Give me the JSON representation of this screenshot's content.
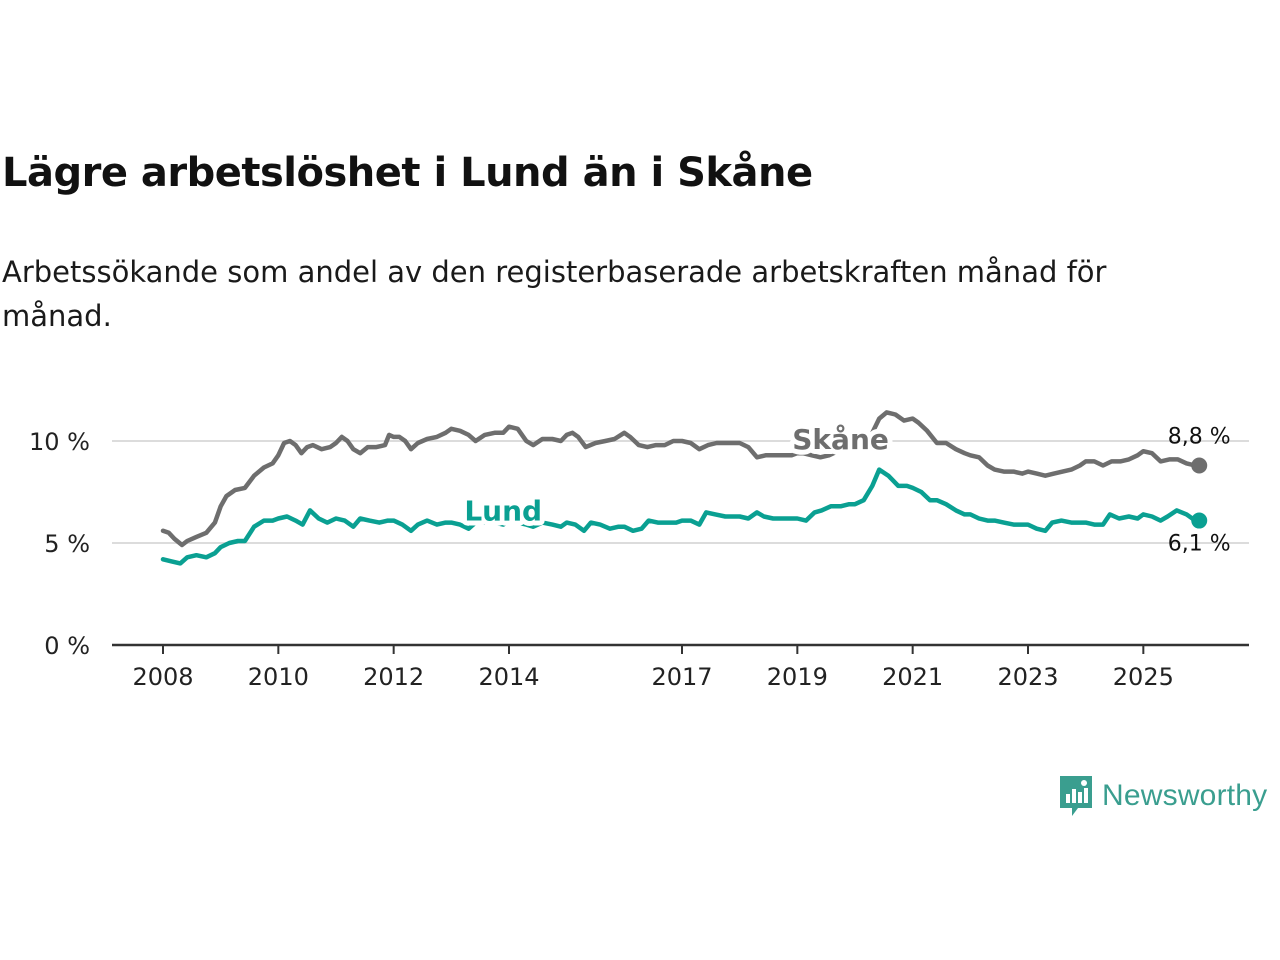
{
  "title": "Lägre arbetslöshet i Lund än i Skåne",
  "subtitle": "Arbetssökande som andel av den registerbaserade arbetskraften månad för månad.",
  "brand": {
    "name": "Newsworthy"
  },
  "colors": {
    "skane": "#6e6e6e",
    "lund": "#0aa092",
    "grid": "#dcdcdc",
    "axis": "#333333",
    "brand": "#3a9e8f"
  },
  "chart_data": {
    "type": "line",
    "title": "Lägre arbetslöshet i Lund än i Skåne",
    "xlabel": "",
    "ylabel": "",
    "xlim": [
      2008,
      2026.5
    ],
    "ylim": [
      0,
      10
    ],
    "x_ticks": [
      {
        "value": 2008,
        "label": "2008"
      },
      {
        "value": 2010,
        "label": "2010"
      },
      {
        "value": 2012,
        "label": "2012"
      },
      {
        "value": 2014,
        "label": "2014"
      },
      {
        "value": 2017,
        "label": "2017"
      },
      {
        "value": 2019,
        "label": "2019"
      },
      {
        "value": 2021,
        "label": "2021"
      },
      {
        "value": 2023,
        "label": "2023"
      },
      {
        "value": 2025,
        "label": "2025"
      }
    ],
    "y_ticks": [
      {
        "value": 0,
        "label": "0 %"
      },
      {
        "value": 5,
        "label": "5 %"
      },
      {
        "value": 10,
        "label": "10 %"
      }
    ],
    "series": [
      {
        "name": "Skåne",
        "last_label": "8,8 %",
        "points": [
          [
            2008.0,
            5.6
          ],
          [
            2008.1,
            5.5
          ],
          [
            2008.2,
            5.2
          ],
          [
            2008.33,
            4.9
          ],
          [
            2008.42,
            5.1
          ],
          [
            2008.58,
            5.3
          ],
          [
            2008.75,
            5.5
          ],
          [
            2008.9,
            6.0
          ],
          [
            2009.0,
            6.8
          ],
          [
            2009.1,
            7.3
          ],
          [
            2009.25,
            7.6
          ],
          [
            2009.42,
            7.7
          ],
          [
            2009.58,
            8.3
          ],
          [
            2009.75,
            8.7
          ],
          [
            2009.9,
            8.9
          ],
          [
            2010.0,
            9.3
          ],
          [
            2010.1,
            9.9
          ],
          [
            2010.2,
            10.0
          ],
          [
            2010.3,
            9.8
          ],
          [
            2010.4,
            9.4
          ],
          [
            2010.5,
            9.7
          ],
          [
            2010.6,
            9.8
          ],
          [
            2010.75,
            9.6
          ],
          [
            2010.9,
            9.7
          ],
          [
            2011.0,
            9.9
          ],
          [
            2011.1,
            10.2
          ],
          [
            2011.2,
            10.0
          ],
          [
            2011.3,
            9.6
          ],
          [
            2011.42,
            9.4
          ],
          [
            2011.55,
            9.7
          ],
          [
            2011.7,
            9.7
          ],
          [
            2011.85,
            9.8
          ],
          [
            2011.92,
            10.3
          ],
          [
            2012.0,
            10.2
          ],
          [
            2012.1,
            10.2
          ],
          [
            2012.2,
            10.0
          ],
          [
            2012.3,
            9.6
          ],
          [
            2012.42,
            9.9
          ],
          [
            2012.58,
            10.1
          ],
          [
            2012.75,
            10.2
          ],
          [
            2012.9,
            10.4
          ],
          [
            2013.0,
            10.6
          ],
          [
            2013.15,
            10.5
          ],
          [
            2013.3,
            10.3
          ],
          [
            2013.42,
            10.0
          ],
          [
            2013.58,
            10.3
          ],
          [
            2013.75,
            10.4
          ],
          [
            2013.9,
            10.4
          ],
          [
            2014.0,
            10.7
          ],
          [
            2014.15,
            10.6
          ],
          [
            2014.3,
            10.0
          ],
          [
            2014.42,
            9.8
          ],
          [
            2014.58,
            10.1
          ],
          [
            2014.75,
            10.1
          ],
          [
            2014.9,
            10.0
          ],
          [
            2015.0,
            10.3
          ],
          [
            2015.1,
            10.4
          ],
          [
            2015.2,
            10.2
          ],
          [
            2015.33,
            9.7
          ],
          [
            2015.5,
            9.9
          ],
          [
            2015.67,
            10.0
          ],
          [
            2015.83,
            10.1
          ],
          [
            2016.0,
            10.4
          ],
          [
            2016.1,
            10.2
          ],
          [
            2016.25,
            9.8
          ],
          [
            2016.4,
            9.7
          ],
          [
            2016.55,
            9.8
          ],
          [
            2016.7,
            9.8
          ],
          [
            2016.85,
            10.0
          ],
          [
            2017.0,
            10.0
          ],
          [
            2017.15,
            9.9
          ],
          [
            2017.3,
            9.6
          ],
          [
            2017.45,
            9.8
          ],
          [
            2017.6,
            9.9
          ],
          [
            2017.75,
            9.9
          ],
          [
            2017.9,
            9.9
          ],
          [
            2018.0,
            9.9
          ],
          [
            2018.15,
            9.7
          ],
          [
            2018.3,
            9.2
          ],
          [
            2018.45,
            9.3
          ],
          [
            2018.6,
            9.3
          ],
          [
            2018.75,
            9.3
          ],
          [
            2018.9,
            9.3
          ],
          [
            2019.0,
            9.4
          ],
          [
            2019.1,
            9.4
          ],
          [
            2019.25,
            9.3
          ],
          [
            2019.4,
            9.2
          ],
          [
            2019.55,
            9.3
          ],
          [
            2019.7,
            9.5
          ],
          [
            2019.85,
            9.7
          ],
          [
            2020.0,
            9.7
          ],
          [
            2020.15,
            9.9
          ],
          [
            2020.3,
            10.4
          ],
          [
            2020.42,
            11.1
          ],
          [
            2020.55,
            11.4
          ],
          [
            2020.7,
            11.3
          ],
          [
            2020.85,
            11.0
          ],
          [
            2021.0,
            11.1
          ],
          [
            2021.1,
            10.9
          ],
          [
            2021.25,
            10.5
          ],
          [
            2021.42,
            9.9
          ],
          [
            2021.58,
            9.9
          ],
          [
            2021.75,
            9.6
          ],
          [
            2021.9,
            9.4
          ],
          [
            2022.0,
            9.3
          ],
          [
            2022.15,
            9.2
          ],
          [
            2022.3,
            8.8
          ],
          [
            2022.42,
            8.6
          ],
          [
            2022.58,
            8.5
          ],
          [
            2022.75,
            8.5
          ],
          [
            2022.9,
            8.4
          ],
          [
            2023.0,
            8.5
          ],
          [
            2023.15,
            8.4
          ],
          [
            2023.3,
            8.3
          ],
          [
            2023.45,
            8.4
          ],
          [
            2023.6,
            8.5
          ],
          [
            2023.75,
            8.6
          ],
          [
            2023.9,
            8.8
          ],
          [
            2024.0,
            9.0
          ],
          [
            2024.15,
            9.0
          ],
          [
            2024.3,
            8.8
          ],
          [
            2024.45,
            9.0
          ],
          [
            2024.6,
            9.0
          ],
          [
            2024.75,
            9.1
          ],
          [
            2024.9,
            9.3
          ],
          [
            2025.0,
            9.5
          ],
          [
            2025.15,
            9.4
          ],
          [
            2025.3,
            9.0
          ],
          [
            2025.45,
            9.1
          ],
          [
            2025.6,
            9.1
          ],
          [
            2025.75,
            8.9
          ],
          [
            2025.9,
            8.8
          ]
        ]
      },
      {
        "name": "Lund",
        "last_label": "6,1 %",
        "points": [
          [
            2008.0,
            4.2
          ],
          [
            2008.15,
            4.1
          ],
          [
            2008.3,
            4.0
          ],
          [
            2008.42,
            4.3
          ],
          [
            2008.58,
            4.4
          ],
          [
            2008.75,
            4.3
          ],
          [
            2008.9,
            4.5
          ],
          [
            2009.0,
            4.8
          ],
          [
            2009.15,
            5.0
          ],
          [
            2009.3,
            5.1
          ],
          [
            2009.42,
            5.1
          ],
          [
            2009.58,
            5.8
          ],
          [
            2009.75,
            6.1
          ],
          [
            2009.9,
            6.1
          ],
          [
            2010.0,
            6.2
          ],
          [
            2010.15,
            6.3
          ],
          [
            2010.3,
            6.1
          ],
          [
            2010.42,
            5.9
          ],
          [
            2010.55,
            6.6
          ],
          [
            2010.7,
            6.2
          ],
          [
            2010.85,
            6.0
          ],
          [
            2011.0,
            6.2
          ],
          [
            2011.15,
            6.1
          ],
          [
            2011.3,
            5.8
          ],
          [
            2011.42,
            6.2
          ],
          [
            2011.58,
            6.1
          ],
          [
            2011.75,
            6.0
          ],
          [
            2011.9,
            6.1
          ],
          [
            2012.0,
            6.1
          ],
          [
            2012.15,
            5.9
          ],
          [
            2012.3,
            5.6
          ],
          [
            2012.42,
            5.9
          ],
          [
            2012.58,
            6.1
          ],
          [
            2012.75,
            5.9
          ],
          [
            2012.9,
            6.0
          ],
          [
            2013.0,
            6.0
          ],
          [
            2013.15,
            5.9
          ],
          [
            2013.3,
            5.7
          ],
          [
            2013.42,
            6.0
          ],
          [
            2013.58,
            6.0
          ],
          [
            2013.75,
            6.0
          ],
          [
            2013.9,
            5.9
          ],
          [
            2014.0,
            6.1
          ],
          [
            2014.15,
            6.0
          ],
          [
            2014.3,
            5.9
          ],
          [
            2014.42,
            5.8
          ],
          [
            2014.58,
            6.0
          ],
          [
            2014.75,
            5.9
          ],
          [
            2014.9,
            5.8
          ],
          [
            2015.0,
            6.0
          ],
          [
            2015.15,
            5.9
          ],
          [
            2015.3,
            5.6
          ],
          [
            2015.42,
            6.0
          ],
          [
            2015.58,
            5.9
          ],
          [
            2015.75,
            5.7
          ],
          [
            2015.9,
            5.8
          ],
          [
            2016.0,
            5.8
          ],
          [
            2016.15,
            5.6
          ],
          [
            2016.3,
            5.7
          ],
          [
            2016.42,
            6.1
          ],
          [
            2016.58,
            6.0
          ],
          [
            2016.75,
            6.0
          ],
          [
            2016.9,
            6.0
          ],
          [
            2017.0,
            6.1
          ],
          [
            2017.15,
            6.1
          ],
          [
            2017.3,
            5.9
          ],
          [
            2017.42,
            6.5
          ],
          [
            2017.58,
            6.4
          ],
          [
            2017.75,
            6.3
          ],
          [
            2017.9,
            6.3
          ],
          [
            2018.0,
            6.3
          ],
          [
            2018.15,
            6.2
          ],
          [
            2018.3,
            6.5
          ],
          [
            2018.42,
            6.3
          ],
          [
            2018.58,
            6.2
          ],
          [
            2018.75,
            6.2
          ],
          [
            2018.9,
            6.2
          ],
          [
            2019.0,
            6.2
          ],
          [
            2019.15,
            6.1
          ],
          [
            2019.3,
            6.5
          ],
          [
            2019.42,
            6.6
          ],
          [
            2019.58,
            6.8
          ],
          [
            2019.75,
            6.8
          ],
          [
            2019.9,
            6.9
          ],
          [
            2020.0,
            6.9
          ],
          [
            2020.15,
            7.1
          ],
          [
            2020.3,
            7.8
          ],
          [
            2020.42,
            8.6
          ],
          [
            2020.58,
            8.3
          ],
          [
            2020.75,
            7.8
          ],
          [
            2020.9,
            7.8
          ],
          [
            2021.0,
            7.7
          ],
          [
            2021.15,
            7.5
          ],
          [
            2021.3,
            7.1
          ],
          [
            2021.42,
            7.1
          ],
          [
            2021.58,
            6.9
          ],
          [
            2021.75,
            6.6
          ],
          [
            2021.9,
            6.4
          ],
          [
            2022.0,
            6.4
          ],
          [
            2022.15,
            6.2
          ],
          [
            2022.3,
            6.1
          ],
          [
            2022.42,
            6.1
          ],
          [
            2022.58,
            6.0
          ],
          [
            2022.75,
            5.9
          ],
          [
            2022.9,
            5.9
          ],
          [
            2023.0,
            5.9
          ],
          [
            2023.15,
            5.7
          ],
          [
            2023.3,
            5.6
          ],
          [
            2023.42,
            6.0
          ],
          [
            2023.58,
            6.1
          ],
          [
            2023.75,
            6.0
          ],
          [
            2023.9,
            6.0
          ],
          [
            2024.0,
            6.0
          ],
          [
            2024.15,
            5.9
          ],
          [
            2024.3,
            5.9
          ],
          [
            2024.42,
            6.4
          ],
          [
            2024.58,
            6.2
          ],
          [
            2024.75,
            6.3
          ],
          [
            2024.9,
            6.2
          ],
          [
            2025.0,
            6.4
          ],
          [
            2025.15,
            6.3
          ],
          [
            2025.3,
            6.1
          ],
          [
            2025.42,
            6.3
          ],
          [
            2025.58,
            6.6
          ],
          [
            2025.75,
            6.4
          ],
          [
            2025.9,
            6.1
          ]
        ]
      }
    ]
  }
}
